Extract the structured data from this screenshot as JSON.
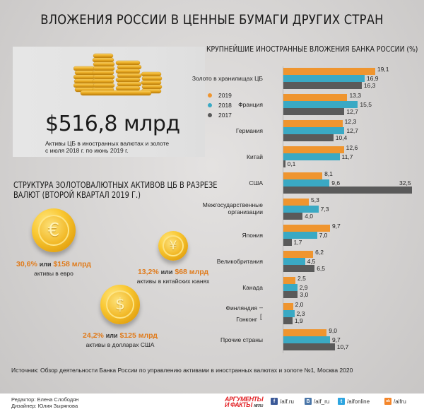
{
  "title": "ВЛОЖЕНИЯ РОССИИ В ЦЕННЫЕ БУМАГИ ДРУГИХ СТРАН",
  "total": {
    "value": "$516,8 млрд",
    "caption_line1": "Активы ЦБ в иностранных валютах и золоте",
    "caption_line2": "с июля 2018 г. по июнь 2019 г.",
    "icon": "gold-coins-stack"
  },
  "structure": {
    "title_line1": "СТРУКТУРА ЗОЛОТОВАЛЮТНЫХ АКТИВОВ ЦБ В РАЗРЕЗЕ",
    "title_line2": "ВАЛЮТ (ВТОРОЙ КВАРТАЛ 2019 Г.)",
    "or_word": "или",
    "currencies": [
      {
        "symbol": "€",
        "icon": "euro-coin",
        "percent": "30,6%",
        "amount": "$158 млрд",
        "desc": "активы в евро"
      },
      {
        "symbol": "¥",
        "icon": "yuan-coin",
        "percent": "13,2%",
        "amount": "$68 млрд",
        "desc": "активы в китайских юанях"
      },
      {
        "symbol": "$",
        "icon": "dollar-coin",
        "percent": "24,2%",
        "amount": "$125 млрд",
        "desc": "активы в долларах США"
      }
    ]
  },
  "colors": {
    "y2019": "#ef952f",
    "y2018": "#3aa9c4",
    "y2017": "#5a5a5a",
    "accent_text": "#e07b1b"
  },
  "chart_data": {
    "type": "bar",
    "orientation": "horizontal",
    "title": "КРУПНЕЙШИЕ ИНОСТРАННЫЕ ВЛОЖЕНИЯ БАНКА РОССИИ (%)",
    "xlabel": "",
    "ylabel": "",
    "legend": [
      "2019",
      "2018",
      "2017"
    ],
    "legend_position": "left",
    "grid": false,
    "categories": [
      "Золото в хранилищах ЦБ",
      "Франция",
      "Германия",
      "Китай",
      "США",
      "Межгосударственные организации",
      "Япония",
      "Великобритания",
      "Канада",
      "Финляндия / Гонконг",
      "Прочие страны"
    ],
    "series": [
      {
        "name": "2019",
        "values": [
          19.1,
          13.3,
          12.3,
          12.6,
          8.1,
          5.3,
          9.7,
          6.2,
          2.5,
          2.0,
          9.0
        ]
      },
      {
        "name": "2018",
        "values": [
          16.9,
          15.5,
          12.7,
          11.7,
          9.6,
          7.3,
          7.0,
          4.5,
          2.9,
          2.3,
          9.7
        ]
      },
      {
        "name": "2017",
        "values": [
          16.3,
          12.7,
          10.4,
          0.1,
          32.5,
          4.0,
          1.7,
          6.5,
          3.0,
          1.9,
          10.7
        ]
      }
    ],
    "annotations": [
      "Финляндия: 2019 = 2,0",
      "Гонконг: 2018 = 2,3; 2017 = 1,9"
    ],
    "xlim": [
      0,
      32.5
    ]
  },
  "chart": {
    "groups": [
      {
        "label1": "Золото в хранилищах ЦБ",
        "label2": "",
        "v": [
          "19,1",
          "16,9",
          "16,3"
        ],
        "n": [
          19.1,
          16.9,
          16.3
        ]
      },
      {
        "label1": "Франция",
        "label2": "",
        "v": [
          "13,3",
          "15,5",
          "12,7"
        ],
        "n": [
          13.3,
          15.5,
          12.7
        ]
      },
      {
        "label1": "Германия",
        "label2": "",
        "v": [
          "12,3",
          "12,7",
          "10,4"
        ],
        "n": [
          12.3,
          12.7,
          10.4
        ]
      },
      {
        "label1": "Китай",
        "label2": "",
        "v": [
          "12,6",
          "11,7",
          "0,1"
        ],
        "n": [
          12.6,
          11.7,
          0.1
        ]
      },
      {
        "label1": "США",
        "label2": "",
        "v": [
          "8,1",
          "9,6",
          "32,5"
        ],
        "n": [
          8.1,
          9.6,
          32.5
        ]
      },
      {
        "label1": "Межгосударственные",
        "label2": "организации",
        "v": [
          "5,3",
          "7,3",
          "4,0"
        ],
        "n": [
          5.3,
          7.3,
          4.0
        ]
      },
      {
        "label1": "Япония",
        "label2": "",
        "v": [
          "9,7",
          "7,0",
          "1,7"
        ],
        "n": [
          9.7,
          7.0,
          1.7
        ]
      },
      {
        "label1": "Великобритания",
        "label2": "",
        "v": [
          "6,2",
          "4,5",
          "6,5"
        ],
        "n": [
          6.2,
          4.5,
          6.5
        ]
      },
      {
        "label1": "Канада",
        "label2": "",
        "v": [
          "2,5",
          "2,9",
          "3,0"
        ],
        "n": [
          2.5,
          2.9,
          3.0
        ]
      },
      {
        "label1": "Финляндия",
        "label2": "Гонконг",
        "v": [
          "2,0",
          "2,3",
          "1,9"
        ],
        "n": [
          2.0,
          2.3,
          1.9
        ]
      },
      {
        "label1": "Прочие страны",
        "label2": "",
        "v": [
          "9,0",
          "9,7",
          "10,7"
        ],
        "n": [
          9.0,
          9.7,
          10.7
        ]
      }
    ]
  },
  "source": "Источник: Обзор деятельности Банка России по управлению активами в иностранных валютах и золоте №1, Москва 2020",
  "footer": {
    "editor": "Редактор: Елена Слободян",
    "designer": "Дизайнер: Юлия Зырянова",
    "logo_line1": "АРГУМЕНТЫ",
    "logo_line2": "И ФАКТЫ",
    "logo_site": "AIF.RU",
    "social": [
      {
        "icon": "facebook-icon",
        "glyph": "f",
        "color": "#3b5998",
        "handle": "/aif.ru"
      },
      {
        "icon": "vk-icon",
        "glyph": "B",
        "color": "#4a76a8",
        "handle": "/aif_ru"
      },
      {
        "icon": "twitter-icon",
        "glyph": "t",
        "color": "#2ea5e0",
        "handle": "/aifonline"
      },
      {
        "icon": "odnoklassniki-icon",
        "glyph": "ok",
        "color": "#f4862a",
        "handle": "/aifru"
      }
    ]
  }
}
